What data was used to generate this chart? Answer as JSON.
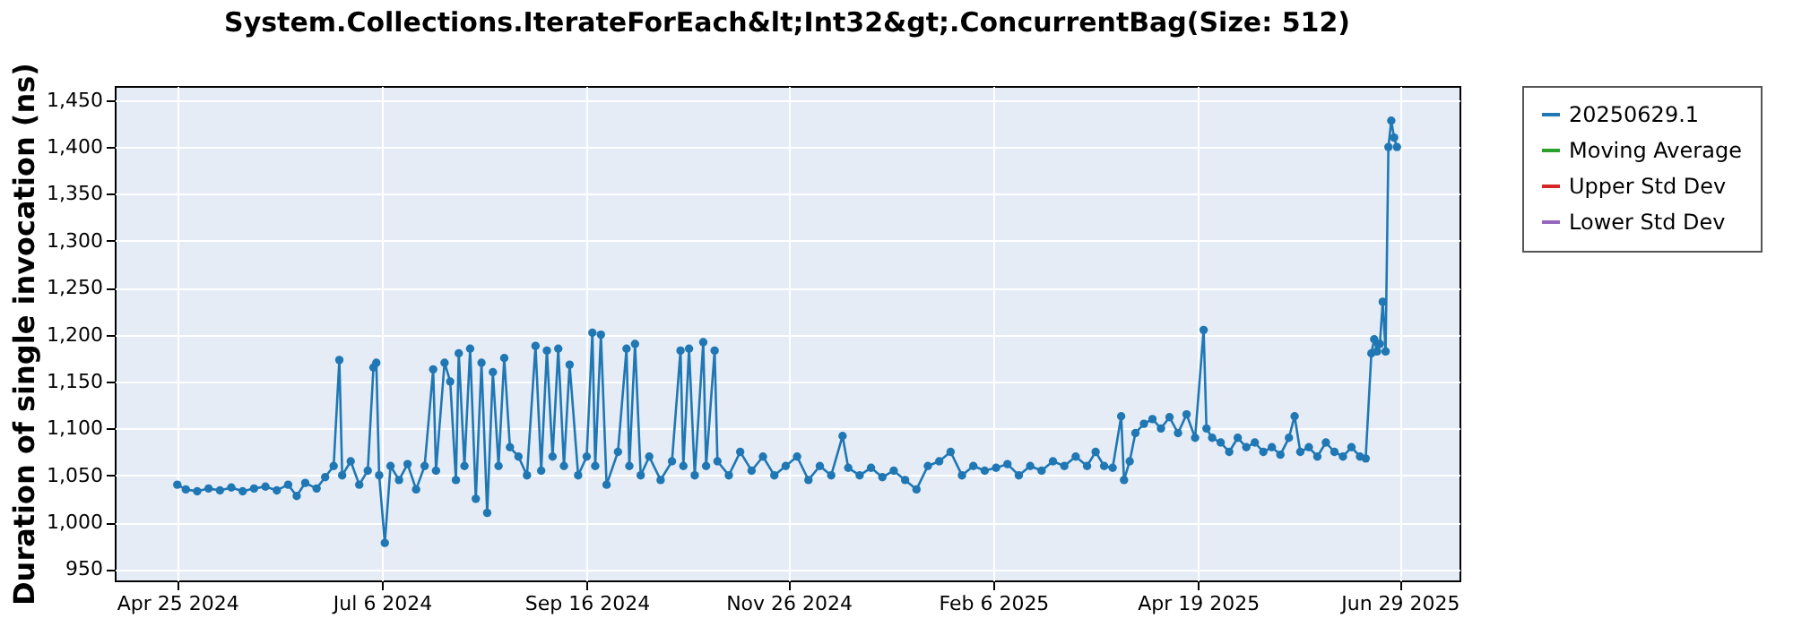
{
  "chart_data": {
    "type": "line",
    "title": "System.Collections.IterateForEach&lt;Int32&gt;.ConcurrentBag(Size: 512)",
    "ylabel": "Duration of single invocation (ns)",
    "x": [
      "2024-04-25",
      "2024-04-28",
      "2024-05-02",
      "2024-05-06",
      "2024-05-10",
      "2024-05-14",
      "2024-05-18",
      "2024-05-22",
      "2024-05-26",
      "2024-05-30",
      "2024-06-03",
      "2024-06-06",
      "2024-06-09",
      "2024-06-13",
      "2024-06-16",
      "2024-06-19",
      "2024-06-21",
      "2024-06-22",
      "2024-06-25",
      "2024-06-28",
      "2024-07-01",
      "2024-07-03",
      "2024-07-04",
      "2024-07-05",
      "2024-07-07",
      "2024-07-09",
      "2024-07-12",
      "2024-07-15",
      "2024-07-18",
      "2024-07-21",
      "2024-07-24",
      "2024-07-25",
      "2024-07-28",
      "2024-07-30",
      "2024-08-01",
      "2024-08-02",
      "2024-08-04",
      "2024-08-06",
      "2024-08-08",
      "2024-08-10",
      "2024-08-12",
      "2024-08-14",
      "2024-08-16",
      "2024-08-18",
      "2024-08-20",
      "2024-08-23",
      "2024-08-26",
      "2024-08-29",
      "2024-08-31",
      "2024-09-02",
      "2024-09-04",
      "2024-09-06",
      "2024-09-08",
      "2024-09-10",
      "2024-09-13",
      "2024-09-16",
      "2024-09-18",
      "2024-09-19",
      "2024-09-21",
      "2024-09-23",
      "2024-09-27",
      "2024-09-30",
      "2024-10-01",
      "2024-10-03",
      "2024-10-05",
      "2024-10-08",
      "2024-10-12",
      "2024-10-16",
      "2024-10-19",
      "2024-10-20",
      "2024-10-22",
      "2024-10-24",
      "2024-10-27",
      "2024-10-28",
      "2024-10-31",
      "2024-11-01",
      "2024-11-05",
      "2024-11-09",
      "2024-11-13",
      "2024-11-17",
      "2024-11-21",
      "2024-11-25",
      "2024-11-29",
      "2024-12-03",
      "2024-12-07",
      "2024-12-11",
      "2024-12-15",
      "2024-12-17",
      "2024-12-21",
      "2024-12-25",
      "2024-12-29",
      "2025-01-02",
      "2025-01-06",
      "2025-01-10",
      "2025-01-14",
      "2025-01-18",
      "2025-01-22",
      "2025-01-26",
      "2025-01-30",
      "2025-02-03",
      "2025-02-07",
      "2025-02-11",
      "2025-02-15",
      "2025-02-19",
      "2025-02-23",
      "2025-02-27",
      "2025-03-03",
      "2025-03-07",
      "2025-03-11",
      "2025-03-14",
      "2025-03-17",
      "2025-03-20",
      "2025-03-23",
      "2025-03-24",
      "2025-03-26",
      "2025-03-28",
      "2025-03-31",
      "2025-04-03",
      "2025-04-06",
      "2025-04-09",
      "2025-04-12",
      "2025-04-15",
      "2025-04-18",
      "2025-04-21",
      "2025-04-22",
      "2025-04-24",
      "2025-04-27",
      "2025-04-30",
      "2025-05-03",
      "2025-05-06",
      "2025-05-09",
      "2025-05-12",
      "2025-05-15",
      "2025-05-18",
      "2025-05-21",
      "2025-05-23",
      "2025-05-25",
      "2025-05-28",
      "2025-05-31",
      "2025-06-03",
      "2025-06-06",
      "2025-06-09",
      "2025-06-12",
      "2025-06-15",
      "2025-06-17",
      "2025-06-19",
      "2025-06-20",
      "2025-06-21",
      "2025-06-22",
      "2025-06-23",
      "2025-06-24",
      "2025-06-25",
      "2025-06-26",
      "2025-06-27",
      "2025-06-28"
    ],
    "series": [
      {
        "name": "20250629.1",
        "color": "#1f77b4",
        "values": [
          1040,
          1035,
          1033,
          1036,
          1034,
          1037,
          1033,
          1036,
          1038,
          1034,
          1040,
          1028,
          1042,
          1036,
          1048,
          1060,
          1173,
          1050,
          1065,
          1040,
          1055,
          1165,
          1170,
          1050,
          978,
          1060,
          1045,
          1062,
          1035,
          1060,
          1163,
          1055,
          1170,
          1150,
          1045,
          1180,
          1060,
          1185,
          1025,
          1170,
          1010,
          1160,
          1060,
          1175,
          1080,
          1070,
          1050,
          1188,
          1055,
          1183,
          1070,
          1185,
          1060,
          1168,
          1050,
          1070,
          1202,
          1060,
          1200,
          1040,
          1075,
          1185,
          1060,
          1190,
          1050,
          1070,
          1045,
          1065,
          1183,
          1060,
          1185,
          1050,
          1192,
          1060,
          1183,
          1065,
          1050,
          1075,
          1055,
          1070,
          1050,
          1060,
          1070,
          1045,
          1060,
          1050,
          1092,
          1058,
          1050,
          1058,
          1048,
          1055,
          1045,
          1035,
          1060,
          1065,
          1075,
          1050,
          1060,
          1055,
          1058,
          1062,
          1050,
          1060,
          1055,
          1065,
          1060,
          1070,
          1060,
          1075,
          1060,
          1058,
          1113,
          1045,
          1065,
          1095,
          1105,
          1110,
          1100,
          1112,
          1095,
          1115,
          1090,
          1205,
          1100,
          1090,
          1085,
          1075,
          1090,
          1080,
          1085,
          1075,
          1080,
          1072,
          1090,
          1113,
          1075,
          1080,
          1070,
          1085,
          1075,
          1070,
          1080,
          1070,
          1068,
          1180,
          1195,
          1182,
          1190,
          1235,
          1182,
          1400,
          1428,
          1410,
          1400
        ]
      },
      {
        "name": "Moving Average",
        "color": "#2ca02c",
        "values": [
          null,
          null,
          null,
          null,
          null,
          null,
          null,
          null,
          null,
          null,
          null,
          null,
          null,
          null,
          null,
          null,
          null,
          null,
          null,
          null,
          null,
          null,
          null,
          null,
          null,
          null,
          null,
          null,
          null,
          null,
          null,
          null,
          null,
          null,
          null,
          null,
          null,
          null,
          null,
          null,
          null,
          null,
          null,
          null,
          null,
          null,
          null,
          null,
          null,
          null,
          null,
          null,
          null,
          null,
          null,
          null,
          null,
          null,
          null,
          null,
          null,
          null,
          null,
          null,
          null,
          null,
          null,
          null,
          null,
          null,
          null,
          null,
          null,
          null,
          null,
          null,
          null,
          null,
          null,
          null,
          null,
          null,
          null,
          null,
          null,
          null,
          null,
          null,
          null,
          null,
          null,
          null,
          null,
          null,
          null,
          null,
          null,
          null,
          null,
          null,
          null,
          null,
          null,
          null,
          null,
          null,
          null,
          null,
          null,
          null,
          null,
          null,
          null,
          null,
          null,
          null,
          null,
          null,
          null,
          null,
          null,
          null,
          null,
          null,
          null,
          null,
          null,
          null,
          null,
          null,
          null,
          null,
          null,
          null,
          null,
          null,
          null,
          null,
          null,
          null,
          null,
          null,
          null,
          null,
          null,
          null,
          null,
          null,
          null,
          null,
          null,
          null,
          null,
          null,
          null
        ]
      },
      {
        "name": "Upper Std Dev",
        "color": "#d62728",
        "values": [
          null,
          null,
          null,
          null,
          null,
          null,
          null,
          null,
          null,
          null,
          null,
          null,
          null,
          null,
          null,
          null,
          null,
          null,
          null,
          null,
          null,
          null,
          null,
          null,
          null,
          null,
          null,
          null,
          null,
          null,
          null,
          null,
          null,
          null,
          null,
          null,
          null,
          null,
          null,
          null,
          null,
          null,
          null,
          null,
          null,
          null,
          null,
          null,
          null,
          null,
          null,
          null,
          null,
          null,
          null,
          null,
          null,
          null,
          null,
          null,
          null,
          null,
          null,
          null,
          null,
          null,
          null,
          null,
          null,
          null,
          null,
          null,
          null,
          null,
          null,
          null,
          null,
          null,
          null,
          null,
          null,
          null,
          null,
          null,
          null,
          null,
          null,
          null,
          null,
          null,
          null,
          null,
          null,
          null,
          null,
          null,
          null,
          null,
          null,
          null,
          null,
          null,
          null,
          null,
          null,
          null,
          null,
          null,
          null,
          null,
          null,
          null,
          null,
          null,
          null,
          null,
          null,
          null,
          null,
          null,
          null,
          null,
          null,
          null,
          null,
          null,
          null,
          null,
          null,
          null,
          null,
          null,
          null,
          null,
          null,
          null,
          null,
          null,
          null,
          null,
          null,
          null,
          null,
          null,
          null,
          null,
          null,
          null,
          null,
          null,
          null,
          null,
          null,
          null,
          null
        ]
      },
      {
        "name": "Lower Std Dev",
        "color": "#9467bd",
        "values": [
          null,
          null,
          null,
          null,
          null,
          null,
          null,
          null,
          null,
          null,
          null,
          null,
          null,
          null,
          null,
          null,
          null,
          null,
          null,
          null,
          null,
          null,
          null,
          null,
          null,
          null,
          null,
          null,
          null,
          null,
          null,
          null,
          null,
          null,
          null,
          null,
          null,
          null,
          null,
          null,
          null,
          null,
          null,
          null,
          null,
          null,
          null,
          null,
          null,
          null,
          null,
          null,
          null,
          null,
          null,
          null,
          null,
          null,
          null,
          null,
          null,
          null,
          null,
          null,
          null,
          null,
          null,
          null,
          null,
          null,
          null,
          null,
          null,
          null,
          null,
          null,
          null,
          null,
          null,
          null,
          null,
          null,
          null,
          null,
          null,
          null,
          null,
          null,
          null,
          null,
          null,
          null,
          null,
          null,
          null,
          null,
          null,
          null,
          null,
          null,
          null,
          null,
          null,
          null,
          null,
          null,
          null,
          null,
          null,
          null,
          null,
          null,
          null,
          null,
          null,
          null,
          null,
          null,
          null,
          null,
          null,
          null,
          null,
          null,
          null,
          null,
          null,
          null,
          null,
          null,
          null,
          null,
          null,
          null,
          null,
          null,
          null,
          null,
          null,
          null,
          null,
          null,
          null,
          null,
          null,
          null,
          null,
          null,
          null,
          null,
          null,
          null,
          null,
          null,
          null
        ]
      }
    ],
    "xlim": [
      "2024-04-03",
      "2025-07-20"
    ],
    "xticks": [
      {
        "value": "2024-04-25",
        "label": "Apr 25 2024"
      },
      {
        "value": "2024-07-06",
        "label": "Jul 6 2024"
      },
      {
        "value": "2024-09-16",
        "label": "Sep 16 2024"
      },
      {
        "value": "2024-11-26",
        "label": "Nov 26 2024"
      },
      {
        "value": "2025-02-06",
        "label": "Feb 6 2025"
      },
      {
        "value": "2025-04-19",
        "label": "Apr 19 2025"
      },
      {
        "value": "2025-06-29",
        "label": "Jun 29 2025"
      }
    ],
    "ylim": [
      938,
      1465
    ],
    "yticks": [
      950,
      {
        "value": 1000,
        "label": "1,000"
      },
      {
        "value": 1050,
        "label": "1,050"
      },
      {
        "value": 1100,
        "label": "1,100"
      },
      {
        "value": 1150,
        "label": "1,150"
      },
      {
        "value": 1200,
        "label": "1,200"
      },
      {
        "value": 1250,
        "label": "1,250"
      },
      {
        "value": 1300,
        "label": "1,300"
      },
      {
        "value": 1350,
        "label": "1,350"
      },
      {
        "value": 1400,
        "label": "1,400"
      },
      {
        "value": 1450,
        "label": "1,450"
      }
    ],
    "grid": true,
    "legend": "right",
    "marker": "circle",
    "line_style": "solid"
  }
}
